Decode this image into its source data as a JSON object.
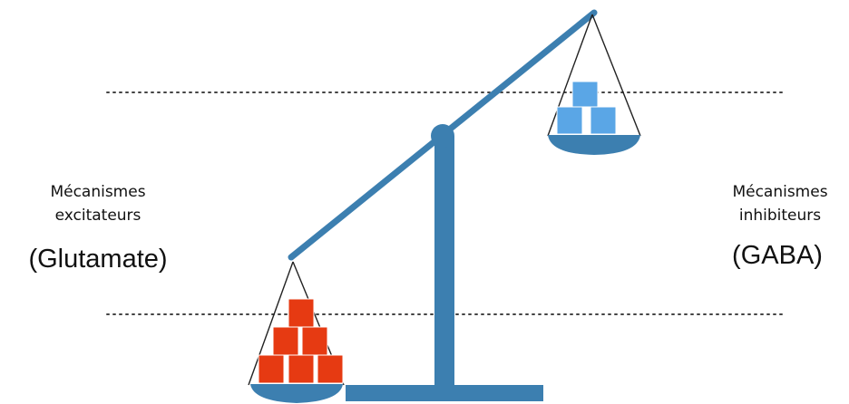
{
  "left_side": {
    "line1": "Mécanismes",
    "line2": "excitateurs",
    "neurotransmitter": "(Glutamate)"
  },
  "right_side": {
    "line1": "Mécanismes",
    "line2": "inhibiteurs",
    "neurotransmitter": "(GABA)"
  },
  "colors": {
    "scale": "#3c7fb0",
    "excitatory_blocks": "#e63a12",
    "inhibitory_blocks": "#5aa6e6",
    "dotted_lines": "#444444"
  },
  "blocks": {
    "excitatory_count": 6,
    "inhibitory_count": 3
  }
}
